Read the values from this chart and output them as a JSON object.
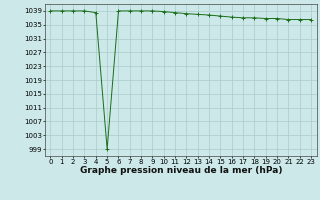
{
  "x": [
    0,
    1,
    2,
    3,
    4,
    5,
    6,
    7,
    8,
    9,
    10,
    11,
    12,
    13,
    14,
    15,
    16,
    17,
    18,
    19,
    20,
    21,
    22,
    23
  ],
  "y": [
    1039,
    1039,
    1039,
    1039,
    1038.5,
    999,
    1039,
    1039,
    1039,
    1039,
    1038.8,
    1038.5,
    1038.2,
    1038,
    1037.8,
    1037.5,
    1037.2,
    1037,
    1037,
    1036.8,
    1036.8,
    1036.5,
    1036.5,
    1036.5
  ],
  "yticks": [
    999,
    1003,
    1007,
    1011,
    1015,
    1019,
    1023,
    1027,
    1031,
    1035,
    1039
  ],
  "xticks": [
    0,
    1,
    2,
    3,
    4,
    5,
    6,
    7,
    8,
    9,
    10,
    11,
    12,
    13,
    14,
    15,
    16,
    17,
    18,
    19,
    20,
    21,
    22,
    23
  ],
  "xlim": [
    -0.5,
    23.5
  ],
  "ylim": [
    997,
    1041
  ],
  "line_color": "#1a6e1a",
  "marker_color": "#1a6e1a",
  "bg_color": "#cce8e8",
  "grid_color": "#aacccc",
  "xlabel": "Graphe pression niveau de la mer (hPa)",
  "xlabel_fontsize": 6.5,
  "tick_fontsize": 5.0,
  "figsize": [
    3.2,
    2.0
  ],
  "dpi": 100
}
